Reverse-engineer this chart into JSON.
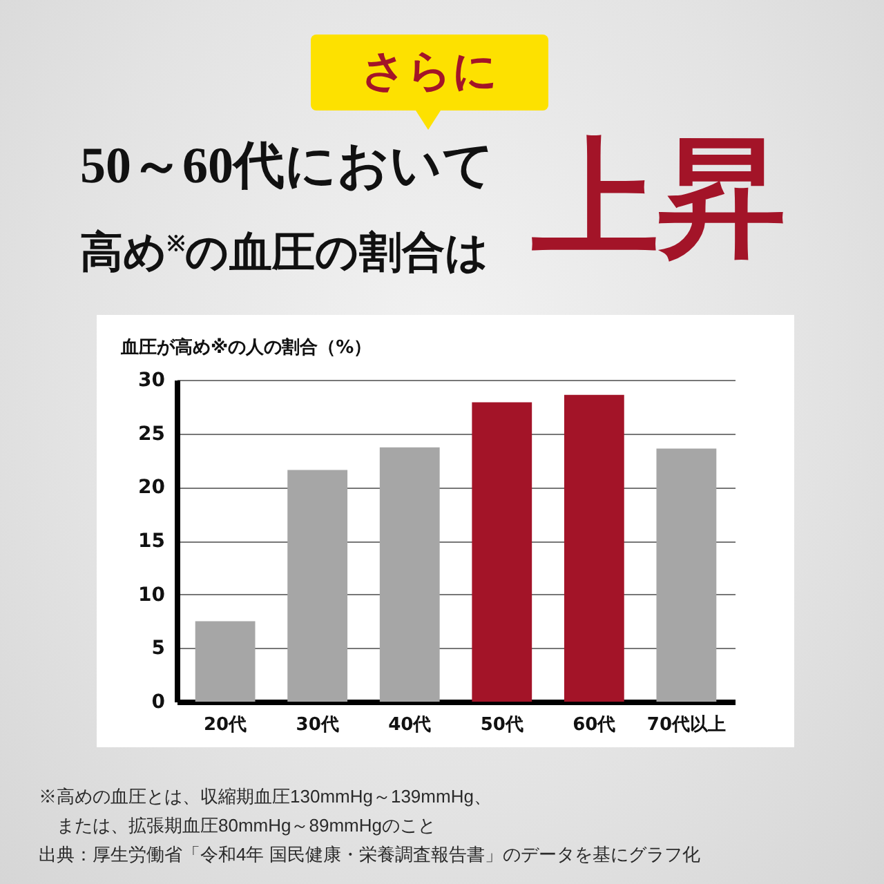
{
  "chart_data": {
    "type": "bar",
    "subtitle": "さらに",
    "title": "50～60代において高め$^{※}$の血圧の割合は上昇",
    "ylabel": "血圧が高め※の人の割合（%）",
    "categories": [
      "20代",
      "30代",
      "40代",
      "50代",
      "60代",
      "70代以上"
    ],
    "values": [
      7.5,
      21.6,
      23.7,
      27.9,
      28.6,
      23.6
    ],
    "colors": [
      "#a6a6a6",
      "#a6a6a6",
      "#a6a6a6",
      "#a31428",
      "#a31428",
      "#a6a6a6"
    ],
    "ylim": [
      0,
      30
    ],
    "yticks": [
      0,
      5,
      10,
      15,
      20,
      25,
      30
    ],
    "grid": "y",
    "annotations": [
      "※高めの血圧とは、収縮期血圧130mmHg～139mmHg、または、拡張期血圧80mmHg～89mmHgのこと",
      "出典：厚生労働省「令和4年 国民健康・栄養調査報告書」のデータを基にグラフ化"
    ]
  }
}
